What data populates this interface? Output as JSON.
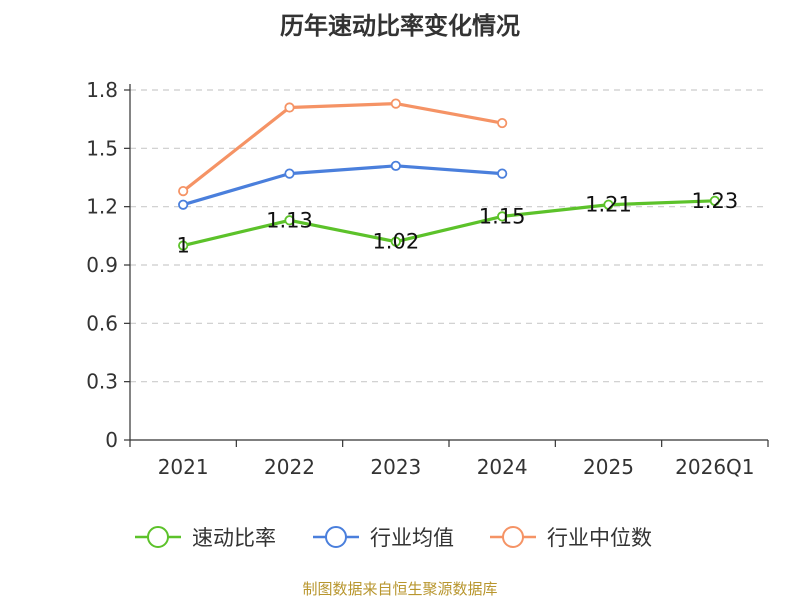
{
  "chart_data": {
    "type": "line",
    "title": "历年速动比率变化情况",
    "categories": [
      "2021",
      "2022",
      "2023",
      "2024",
      "2025",
      "2026Q1"
    ],
    "ylim": [
      0,
      1.8
    ],
    "yticks": [
      0,
      0.3,
      0.6,
      0.9,
      1.2,
      1.5,
      1.8
    ],
    "ytick_labels": [
      "0",
      "0.3",
      "0.6",
      "0.9",
      "1.2",
      "1.5",
      "1.8"
    ],
    "grid": true,
    "legend_position": "bottom",
    "series": [
      {
        "name": "速动比率",
        "color": "#5cc22a",
        "values": [
          1,
          1.13,
          1.02,
          1.15,
          1.21,
          1.23
        ],
        "labels": [
          "1",
          "1.13",
          "1.02",
          "1.15",
          "1.21",
          "1.23"
        ],
        "show_labels": true
      },
      {
        "name": "行业均值",
        "color": "#4a7fdc",
        "values": [
          1.21,
          1.37,
          1.41,
          1.37,
          null,
          null
        ],
        "show_labels": false
      },
      {
        "name": "行业中位数",
        "color": "#f59365",
        "values": [
          1.28,
          1.71,
          1.73,
          1.63,
          null,
          null
        ],
        "show_labels": false
      }
    ]
  },
  "source": "制图数据来自恒生聚源数据库"
}
